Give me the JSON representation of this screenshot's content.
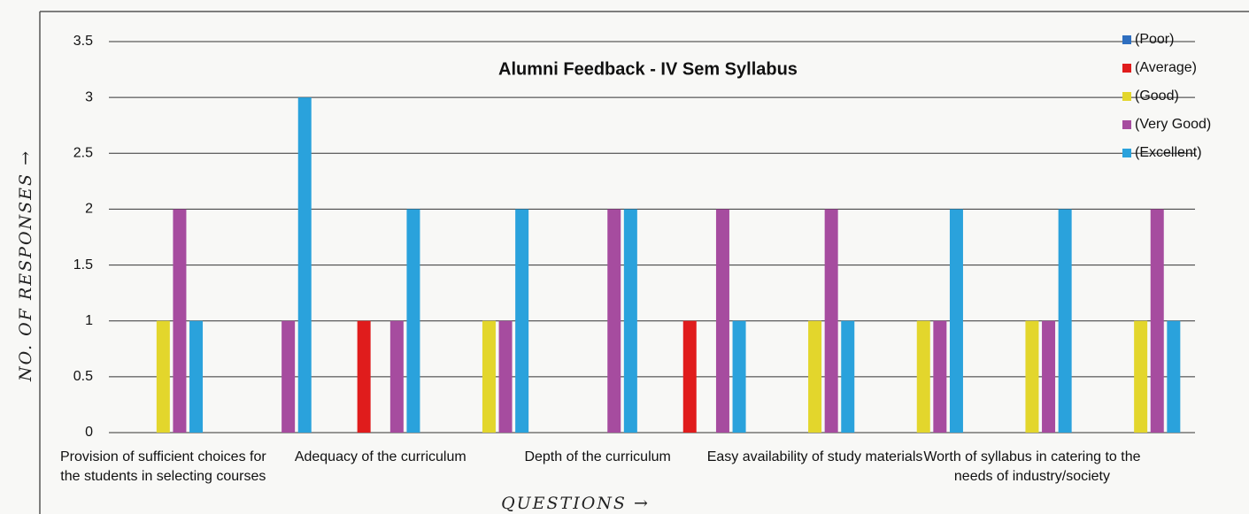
{
  "chart_data": {
    "type": "bar",
    "title": "Alumni Feedback - IV Sem Syllabus",
    "y_label": "NO. OF RESPONSES →",
    "x_label": "QUESTIONS →",
    "categories": [
      "Provision of sufficient choices for the students in selecting courses",
      null,
      "Adequacy of the curriculum",
      null,
      "Depth of the curriculum",
      null,
      "Easy availability of study materials",
      null,
      "Worth of syllabus in catering to the needs of industry/society",
      null
    ],
    "series": [
      {
        "name": "(Poor)",
        "color": "#2f6fc0",
        "values": [
          0,
          0,
          0,
          0,
          0,
          0,
          0,
          0,
          0,
          0
        ]
      },
      {
        "name": "(Average)",
        "color": "#e01c1c",
        "values": [
          0,
          0,
          1,
          0,
          0,
          1,
          0,
          0,
          0,
          0
        ]
      },
      {
        "name": "(Good)",
        "color": "#e3d62c",
        "values": [
          1,
          0,
          0,
          1,
          0,
          0,
          1,
          1,
          1,
          1
        ]
      },
      {
        "name": "(Very Good)",
        "color": "#a64c9f",
        "values": [
          2,
          1,
          1,
          1,
          2,
          2,
          2,
          1,
          1,
          2
        ]
      },
      {
        "name": "(Excellent)",
        "color": "#2aa2dc",
        "values": [
          1,
          3,
          2,
          2,
          2,
          1,
          1,
          2,
          2,
          1
        ]
      }
    ],
    "ylim": [
      0,
      3.5
    ],
    "yticks": [
      0,
      0.5,
      1,
      1.5,
      2,
      2.5,
      3,
      3.5
    ],
    "grid": true,
    "legend": "top-right"
  }
}
